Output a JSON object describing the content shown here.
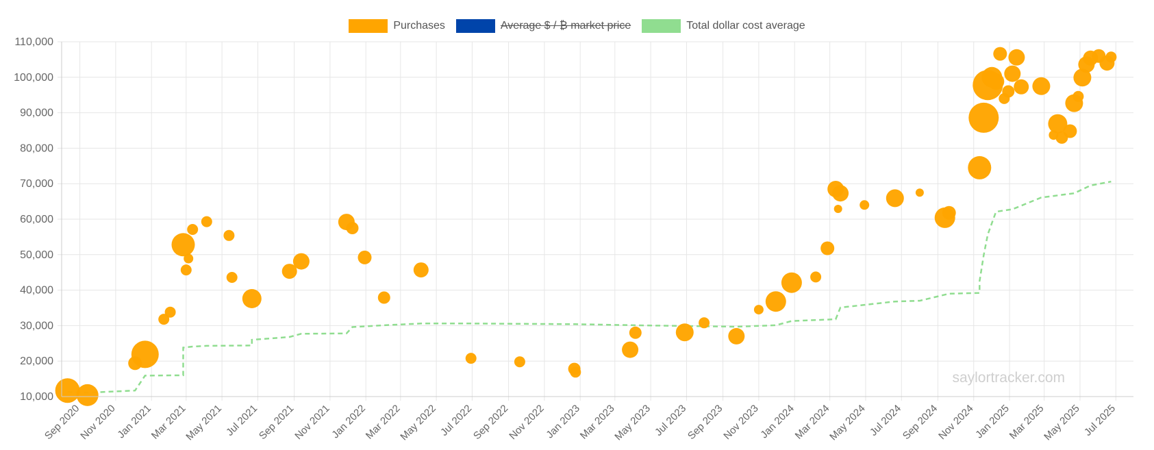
{
  "legend": {
    "purchases": "Purchases",
    "market_price": "Average $ / ₿ market price",
    "dca": "Total dollar cost average"
  },
  "watermark": "saylortracker.com",
  "colors": {
    "purchases": "#ffa500",
    "market_price": "#0044aa",
    "dca": "#90dd90",
    "grid": "#e6e6e6"
  },
  "chart_data": {
    "type": "scatter",
    "ylim": [
      10000,
      110000
    ],
    "xlim": [
      "2020-08-01",
      "2025-07-31"
    ],
    "yticks": [
      10000,
      20000,
      30000,
      40000,
      50000,
      60000,
      70000,
      80000,
      90000,
      100000,
      110000
    ],
    "ytick_labels": [
      "10,000",
      "20,000",
      "30,000",
      "40,000",
      "50,000",
      "60,000",
      "70,000",
      "80,000",
      "90,000",
      "100,000",
      "110,000"
    ],
    "xticks": [
      "2020-09-01",
      "2020-11-01",
      "2021-01-01",
      "2021-03-01",
      "2021-05-01",
      "2021-07-01",
      "2021-09-01",
      "2021-11-01",
      "2022-01-01",
      "2022-03-01",
      "2022-05-01",
      "2022-07-01",
      "2022-09-01",
      "2022-11-01",
      "2023-01-01",
      "2023-03-01",
      "2023-05-01",
      "2023-07-01",
      "2023-09-01",
      "2023-11-01",
      "2024-01-01",
      "2024-03-01",
      "2024-05-01",
      "2024-07-01",
      "2024-09-01",
      "2024-11-01",
      "2025-01-01",
      "2025-03-01",
      "2025-05-01",
      "2025-07-01"
    ],
    "xtick_labels": [
      "Sep 2020",
      "Nov 2020",
      "Jan 2021",
      "Mar 2021",
      "May 2021",
      "Jul 2021",
      "Sep 2021",
      "Nov 2021",
      "Jan 2022",
      "Mar 2022",
      "May 2022",
      "Jul 2022",
      "Sep 2022",
      "Nov 2022",
      "Jan 2023",
      "Mar 2023",
      "May 2023",
      "Jul 2023",
      "Sep 2023",
      "Nov 2023",
      "Jan 2024",
      "Mar 2024",
      "May 2024",
      "Jul 2024",
      "Sep 2024",
      "Nov 2024",
      "Jan 2025",
      "Mar 2025",
      "May 2025",
      "Jul 2025"
    ],
    "grid": true,
    "legend_position": "top-center",
    "series": [
      {
        "name": "Purchases",
        "points": [
          {
            "x": "2020-08-11",
            "y": 11700,
            "r": 18
          },
          {
            "x": "2020-09-14",
            "y": 10400,
            "r": 16
          },
          {
            "x": "2020-12-04",
            "y": 19400,
            "r": 10
          },
          {
            "x": "2020-12-21",
            "y": 21900,
            "r": 20
          },
          {
            "x": "2021-01-22",
            "y": 31800,
            "r": 8
          },
          {
            "x": "2021-02-02",
            "y": 33800,
            "r": 8
          },
          {
            "x": "2021-02-24",
            "y": 52800,
            "r": 17
          },
          {
            "x": "2021-03-01",
            "y": 45700,
            "r": 8
          },
          {
            "x": "2021-03-05",
            "y": 48900,
            "r": 7
          },
          {
            "x": "2021-03-12",
            "y": 57100,
            "r": 8
          },
          {
            "x": "2021-04-05",
            "y": 59300,
            "r": 8
          },
          {
            "x": "2021-05-13",
            "y": 55400,
            "r": 8
          },
          {
            "x": "2021-05-18",
            "y": 43600,
            "r": 8
          },
          {
            "x": "2021-06-21",
            "y": 37600,
            "r": 14
          },
          {
            "x": "2021-08-24",
            "y": 45300,
            "r": 11
          },
          {
            "x": "2021-09-13",
            "y": 48100,
            "r": 12
          },
          {
            "x": "2021-11-29",
            "y": 59200,
            "r": 12
          },
          {
            "x": "2021-12-09",
            "y": 57500,
            "r": 9
          },
          {
            "x": "2021-12-30",
            "y": 49200,
            "r": 10
          },
          {
            "x": "2022-02-01",
            "y": 37900,
            "r": 9
          },
          {
            "x": "2022-04-05",
            "y": 45700,
            "r": 11
          },
          {
            "x": "2022-06-29",
            "y": 20800,
            "r": 8
          },
          {
            "x": "2022-09-20",
            "y": 19800,
            "r": 8
          },
          {
            "x": "2022-12-22",
            "y": 17800,
            "r": 9
          },
          {
            "x": "2022-12-24",
            "y": 16900,
            "r": 8
          },
          {
            "x": "2023-03-27",
            "y": 23200,
            "r": 12
          },
          {
            "x": "2023-04-05",
            "y": 28000,
            "r": 9
          },
          {
            "x": "2023-06-28",
            "y": 28100,
            "r": 13
          },
          {
            "x": "2023-07-31",
            "y": 30800,
            "r": 8
          },
          {
            "x": "2023-09-24",
            "y": 27000,
            "r": 12
          },
          {
            "x": "2023-11-01",
            "y": 34500,
            "r": 7
          },
          {
            "x": "2023-11-30",
            "y": 36800,
            "r": 15
          },
          {
            "x": "2023-12-27",
            "y": 42100,
            "r": 15
          },
          {
            "x": "2024-02-06",
            "y": 43700,
            "r": 8
          },
          {
            "x": "2024-02-26",
            "y": 51800,
            "r": 10
          },
          {
            "x": "2024-03-11",
            "y": 68500,
            "r": 12
          },
          {
            "x": "2024-03-19",
            "y": 67300,
            "r": 12
          },
          {
            "x": "2024-03-15",
            "y": 62900,
            "r": 6
          },
          {
            "x": "2024-04-29",
            "y": 64000,
            "r": 7
          },
          {
            "x": "2024-06-20",
            "y": 65900,
            "r": 13
          },
          {
            "x": "2024-08-01",
            "y": 67500,
            "r": 6
          },
          {
            "x": "2024-09-13",
            "y": 60400,
            "r": 15
          },
          {
            "x": "2024-09-20",
            "y": 61800,
            "r": 10
          },
          {
            "x": "2024-11-11",
            "y": 74500,
            "r": 17
          },
          {
            "x": "2024-11-18",
            "y": 88600,
            "r": 22
          },
          {
            "x": "2024-11-25",
            "y": 97800,
            "r": 22
          },
          {
            "x": "2024-12-02",
            "y": 100000,
            "r": 15
          },
          {
            "x": "2024-12-09",
            "y": 98800,
            "r": 12
          },
          {
            "x": "2024-12-16",
            "y": 106600,
            "r": 10
          },
          {
            "x": "2024-12-23",
            "y": 94000,
            "r": 8
          },
          {
            "x": "2024-12-30",
            "y": 96000,
            "r": 9
          },
          {
            "x": "2025-01-06",
            "y": 101000,
            "r": 12
          },
          {
            "x": "2025-01-13",
            "y": 105600,
            "r": 12
          },
          {
            "x": "2025-01-21",
            "y": 97300,
            "r": 11
          },
          {
            "x": "2025-02-24",
            "y": 97500,
            "r": 13
          },
          {
            "x": "2025-03-17",
            "y": 83700,
            "r": 7
          },
          {
            "x": "2025-03-24",
            "y": 86900,
            "r": 14
          },
          {
            "x": "2025-03-31",
            "y": 83000,
            "r": 9
          },
          {
            "x": "2025-04-14",
            "y": 84800,
            "r": 10
          },
          {
            "x": "2025-04-21",
            "y": 92700,
            "r": 13
          },
          {
            "x": "2025-04-28",
            "y": 94600,
            "r": 8
          },
          {
            "x": "2025-05-05",
            "y": 99900,
            "r": 13
          },
          {
            "x": "2025-05-12",
            "y": 103600,
            "r": 12
          },
          {
            "x": "2025-05-19",
            "y": 105400,
            "r": 11
          },
          {
            "x": "2025-06-02",
            "y": 106000,
            "r": 10
          },
          {
            "x": "2025-06-16",
            "y": 104000,
            "r": 11
          },
          {
            "x": "2025-06-23",
            "y": 105700,
            "r": 8
          }
        ]
      },
      {
        "name": "Total dollar cost average",
        "points": [
          {
            "x": "2020-08-11",
            "y": 11300
          },
          {
            "x": "2020-09-14",
            "y": 11100
          },
          {
            "x": "2020-12-04",
            "y": 11700
          },
          {
            "x": "2020-12-21",
            "y": 15900
          },
          {
            "x": "2021-02-24",
            "y": 16000
          },
          {
            "x": "2021-02-24",
            "y": 23800
          },
          {
            "x": "2021-03-12",
            "y": 24100
          },
          {
            "x": "2021-04-05",
            "y": 24300
          },
          {
            "x": "2021-06-21",
            "y": 24400
          },
          {
            "x": "2021-06-21",
            "y": 26000
          },
          {
            "x": "2021-08-24",
            "y": 26800
          },
          {
            "x": "2021-09-13",
            "y": 27700
          },
          {
            "x": "2021-11-29",
            "y": 27800
          },
          {
            "x": "2021-12-09",
            "y": 29600
          },
          {
            "x": "2022-02-01",
            "y": 30100
          },
          {
            "x": "2022-04-05",
            "y": 30600
          },
          {
            "x": "2022-06-29",
            "y": 30600
          },
          {
            "x": "2022-12-24",
            "y": 30400
          },
          {
            "x": "2023-04-05",
            "y": 30100
          },
          {
            "x": "2023-09-24",
            "y": 29700
          },
          {
            "x": "2023-11-30",
            "y": 30100
          },
          {
            "x": "2023-12-27",
            "y": 31300
          },
          {
            "x": "2024-03-11",
            "y": 31800
          },
          {
            "x": "2024-03-19",
            "y": 35100
          },
          {
            "x": "2024-06-20",
            "y": 36800
          },
          {
            "x": "2024-08-01",
            "y": 37000
          },
          {
            "x": "2024-09-20",
            "y": 39000
          },
          {
            "x": "2024-11-11",
            "y": 39200
          },
          {
            "x": "2024-11-11",
            "y": 42500
          },
          {
            "x": "2024-11-18",
            "y": 49800
          },
          {
            "x": "2024-11-25",
            "y": 55700
          },
          {
            "x": "2024-12-09",
            "y": 62100
          },
          {
            "x": "2025-01-06",
            "y": 62800
          },
          {
            "x": "2025-02-24",
            "y": 66100
          },
          {
            "x": "2025-04-21",
            "y": 67300
          },
          {
            "x": "2025-05-19",
            "y": 69500
          },
          {
            "x": "2025-06-23",
            "y": 70600
          }
        ]
      }
    ]
  }
}
